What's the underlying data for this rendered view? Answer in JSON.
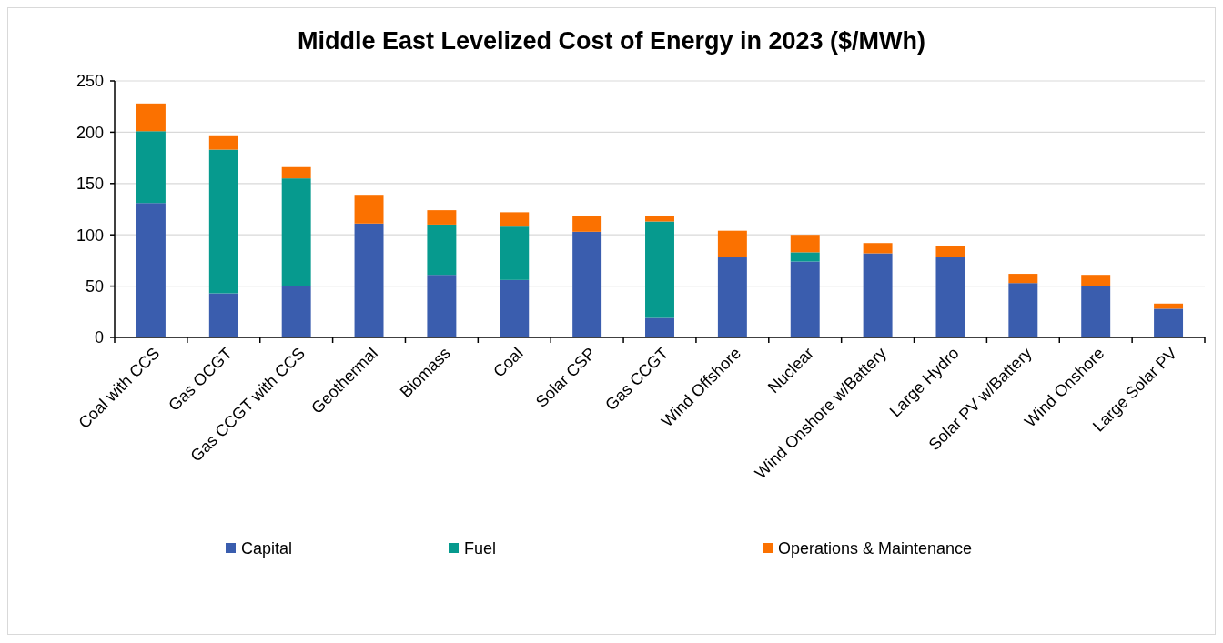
{
  "chart_data": {
    "type": "bar",
    "title": "Middle East Levelized Cost of Energy in 2023 ($/MWh)",
    "stacked": true,
    "categories": [
      "Coal with CCS",
      "Gas OCGT",
      "Gas CCGT with CCS",
      "Geothermal",
      "Biomass",
      "Coal",
      "Solar CSP",
      "Gas CCGT",
      "Wind Offshore",
      "Nuclear",
      "Wind Onshore w/Battery",
      "Large Hydro",
      "Solar PV w/Battery",
      "Wind Onshore",
      "Large Solar PV"
    ],
    "series": [
      {
        "name": "Capital",
        "color": "#3a5dae",
        "values": [
          131,
          43,
          50,
          111,
          61,
          56,
          103,
          19,
          78,
          74,
          82,
          78,
          53,
          50,
          28
        ]
      },
      {
        "name": "Fuel",
        "color": "#069a8e",
        "values": [
          70,
          140,
          105,
          0,
          49,
          52,
          0,
          94,
          0,
          9,
          0,
          0,
          0,
          0,
          0
        ]
      },
      {
        "name": "Operations & Maintenance",
        "color": "#fb7100",
        "values": [
          27,
          14,
          11,
          28,
          14,
          14,
          15,
          5,
          26,
          17,
          10,
          11,
          9,
          11,
          5
        ]
      }
    ],
    "ylim": [
      0,
      250
    ],
    "yticks": [
      0,
      50,
      100,
      150,
      200,
      250
    ],
    "grid": "y",
    "legend": "bottom"
  }
}
